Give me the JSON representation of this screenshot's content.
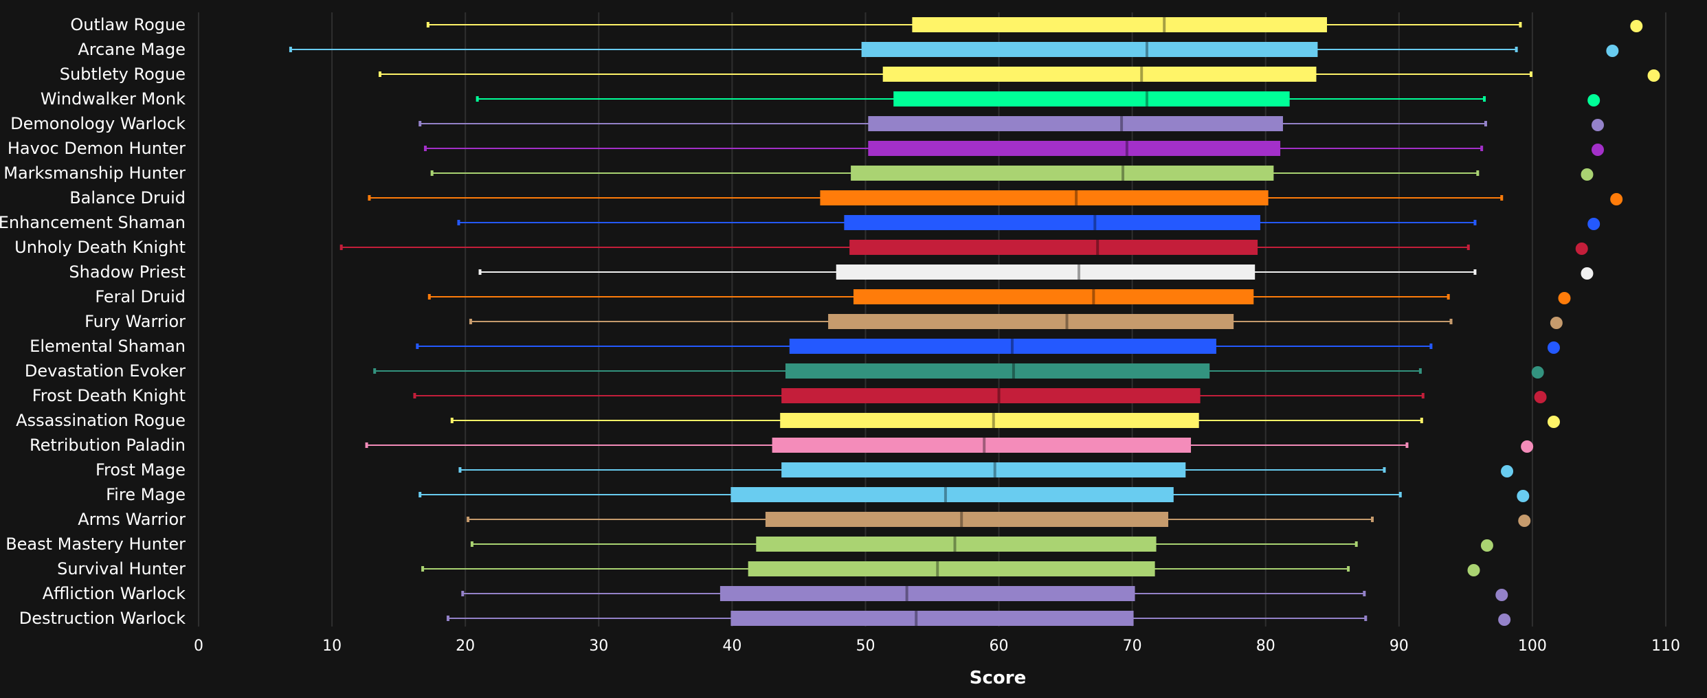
{
  "chart_data": {
    "type": "box",
    "xlabel": "Score",
    "ylabel": "",
    "xlim": [
      0,
      110
    ],
    "xticks": [
      0,
      10,
      20,
      30,
      40,
      50,
      60,
      70,
      80,
      90,
      100,
      110
    ],
    "grid": true,
    "rows": [
      {
        "label": "Outlaw Rogue",
        "color": "#FFF468",
        "min": 17.2,
        "q1": 53.5,
        "median": 72.4,
        "q3": 84.6,
        "max": 99.1,
        "outlier": 107.8
      },
      {
        "label": "Arcane Mage",
        "color": "#69CCF0",
        "min": 6.9,
        "q1": 49.7,
        "median": 71.1,
        "q3": 83.9,
        "max": 98.8,
        "outlier": 106.0
      },
      {
        "label": "Subtlety Rogue",
        "color": "#FFF468",
        "min": 13.6,
        "q1": 51.3,
        "median": 70.7,
        "q3": 83.8,
        "max": 99.9,
        "outlier": 109.1
      },
      {
        "label": "Windwalker Monk",
        "color": "#00FF98",
        "min": 20.9,
        "q1": 52.1,
        "median": 71.1,
        "q3": 81.8,
        "max": 96.4,
        "outlier": 104.6
      },
      {
        "label": "Demonology Warlock",
        "color": "#9482C9",
        "min": 16.6,
        "q1": 50.2,
        "median": 69.2,
        "q3": 81.3,
        "max": 96.5,
        "outlier": 104.9
      },
      {
        "label": "Havoc Demon Hunter",
        "color": "#A330C9",
        "min": 17.0,
        "q1": 50.2,
        "median": 69.6,
        "q3": 81.1,
        "max": 96.2,
        "outlier": 104.9
      },
      {
        "label": "Marksmanship Hunter",
        "color": "#AAD372",
        "min": 17.5,
        "q1": 48.9,
        "median": 69.3,
        "q3": 80.6,
        "max": 95.9,
        "outlier": 104.1
      },
      {
        "label": "Balance Druid",
        "color": "#FF7C0A",
        "min": 12.8,
        "q1": 46.6,
        "median": 65.8,
        "q3": 80.2,
        "max": 97.7,
        "outlier": 106.3
      },
      {
        "label": "Enhancement Shaman",
        "color": "#2459FF",
        "min": 19.5,
        "q1": 48.4,
        "median": 67.2,
        "q3": 79.6,
        "max": 95.7,
        "outlier": 104.6
      },
      {
        "label": "Unholy Death Knight",
        "color": "#C41E3A",
        "min": 10.7,
        "q1": 48.8,
        "median": 67.4,
        "q3": 79.4,
        "max": 95.2,
        "outlier": 103.7
      },
      {
        "label": "Shadow Priest",
        "color": "#F0F0F0",
        "min": 21.1,
        "q1": 47.8,
        "median": 66.0,
        "q3": 79.2,
        "max": 95.7,
        "outlier": 104.1
      },
      {
        "label": "Feral Druid",
        "color": "#FF7C0A",
        "min": 17.3,
        "q1": 49.1,
        "median": 67.1,
        "q3": 79.1,
        "max": 93.7,
        "outlier": 102.4
      },
      {
        "label": "Fury Warrior",
        "color": "#C69B6D",
        "min": 20.4,
        "q1": 47.2,
        "median": 65.1,
        "q3": 77.6,
        "max": 93.9,
        "outlier": 101.8
      },
      {
        "label": "Elemental Shaman",
        "color": "#2459FF",
        "min": 16.4,
        "q1": 44.3,
        "median": 61.0,
        "q3": 76.3,
        "max": 92.4,
        "outlier": 101.6
      },
      {
        "label": "Devastation Evoker",
        "color": "#33937F",
        "min": 13.2,
        "q1": 44.0,
        "median": 61.1,
        "q3": 75.8,
        "max": 91.6,
        "outlier": 100.4
      },
      {
        "label": "Frost Death Knight",
        "color": "#C41E3A",
        "min": 16.2,
        "q1": 43.7,
        "median": 60.0,
        "q3": 75.1,
        "max": 91.8,
        "outlier": 100.6
      },
      {
        "label": "Assassination Rogue",
        "color": "#FFF468",
        "min": 19.0,
        "q1": 43.6,
        "median": 59.6,
        "q3": 75.0,
        "max": 91.7,
        "outlier": 101.6
      },
      {
        "label": "Retribution Paladin",
        "color": "#F48CBA",
        "min": 12.6,
        "q1": 43.0,
        "median": 58.9,
        "q3": 74.4,
        "max": 90.6,
        "outlier": 99.6
      },
      {
        "label": "Frost Mage",
        "color": "#69CCF0",
        "min": 19.6,
        "q1": 43.7,
        "median": 59.7,
        "q3": 74.0,
        "max": 88.9,
        "outlier": 98.1
      },
      {
        "label": "Fire Mage",
        "color": "#69CCF0",
        "min": 16.6,
        "q1": 39.9,
        "median": 56.0,
        "q3": 73.1,
        "max": 90.1,
        "outlier": 99.3
      },
      {
        "label": "Arms Warrior",
        "color": "#C69B6D",
        "min": 20.2,
        "q1": 42.5,
        "median": 57.2,
        "q3": 72.7,
        "max": 88.0,
        "outlier": 99.4
      },
      {
        "label": "Beast Mastery Hunter",
        "color": "#AAD372",
        "min": 20.5,
        "q1": 41.8,
        "median": 56.7,
        "q3": 71.8,
        "max": 86.8,
        "outlier": 96.6
      },
      {
        "label": "Survival Hunter",
        "color": "#AAD372",
        "min": 16.8,
        "q1": 41.2,
        "median": 55.4,
        "q3": 71.7,
        "max": 86.2,
        "outlier": 95.6
      },
      {
        "label": "Affliction Warlock",
        "color": "#9482C9",
        "min": 19.8,
        "q1": 39.1,
        "median": 53.1,
        "q3": 70.2,
        "max": 87.4,
        "outlier": 97.7
      },
      {
        "label": "Destruction Warlock",
        "color": "#9482C9",
        "min": 18.7,
        "q1": 39.9,
        "median": 53.8,
        "q3": 70.1,
        "max": 87.5,
        "outlier": 97.9
      }
    ]
  }
}
